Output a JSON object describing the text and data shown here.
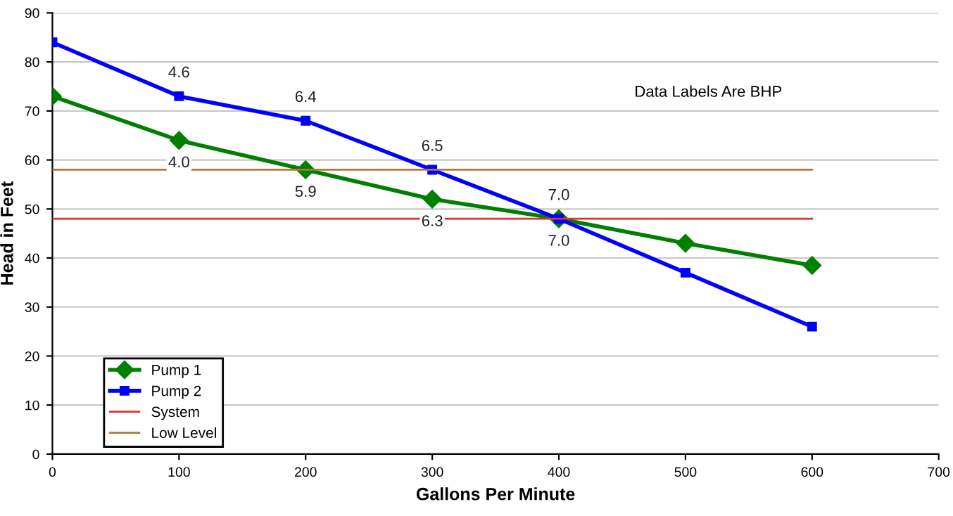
{
  "chart_data": {
    "type": "line",
    "xlabel": "Gallons Per Minute",
    "ylabel": "Head in Feet",
    "xlim": [
      0,
      700
    ],
    "xticks": [
      0,
      100,
      200,
      300,
      400,
      500,
      600,
      700
    ],
    "ylim": [
      0,
      90
    ],
    "yticks": [
      0,
      10,
      20,
      30,
      40,
      50,
      60,
      70,
      80,
      90
    ],
    "grid": "y",
    "legend": "bottom left",
    "annotations": [
      "Data Labels Are BHP",
      {
        "text": "4.6",
        "x": 100,
        "y": 73
      },
      {
        "text": "4.0",
        "x": 100,
        "y": 64
      },
      {
        "text": "6.4",
        "x": 200,
        "y": 68
      },
      {
        "text": "5.9",
        "x": 200,
        "y": 58
      },
      {
        "text": "6.5",
        "x": 300,
        "y": 58
      },
      {
        "text": "6.3",
        "x": 300,
        "y": 52
      },
      {
        "text": "7.0",
        "x": 400,
        "y": 48
      },
      {
        "text": "7.0",
        "x": 400,
        "y": 48
      }
    ],
    "series": [
      {
        "name": "Pump 1",
        "color": "#008000",
        "marker": "diamond",
        "x": [
          0,
          100,
          200,
          300,
          400,
          500,
          600
        ],
        "values": [
          73,
          64,
          58,
          52,
          48,
          43,
          38.5
        ]
      },
      {
        "name": "Pump 2",
        "color": "#0000ff",
        "marker": "square",
        "x": [
          0,
          100,
          200,
          300,
          400,
          500,
          600
        ],
        "values": [
          84,
          73,
          68,
          58,
          48,
          37,
          26
        ]
      },
      {
        "name": "System",
        "color": "#e03030",
        "marker": "none",
        "x": [
          0,
          600
        ],
        "values": [
          48,
          48
        ]
      },
      {
        "name": "Low Level",
        "color": "#b07840",
        "marker": "none",
        "x": [
          0,
          600
        ],
        "values": [
          58,
          58
        ]
      }
    ]
  }
}
